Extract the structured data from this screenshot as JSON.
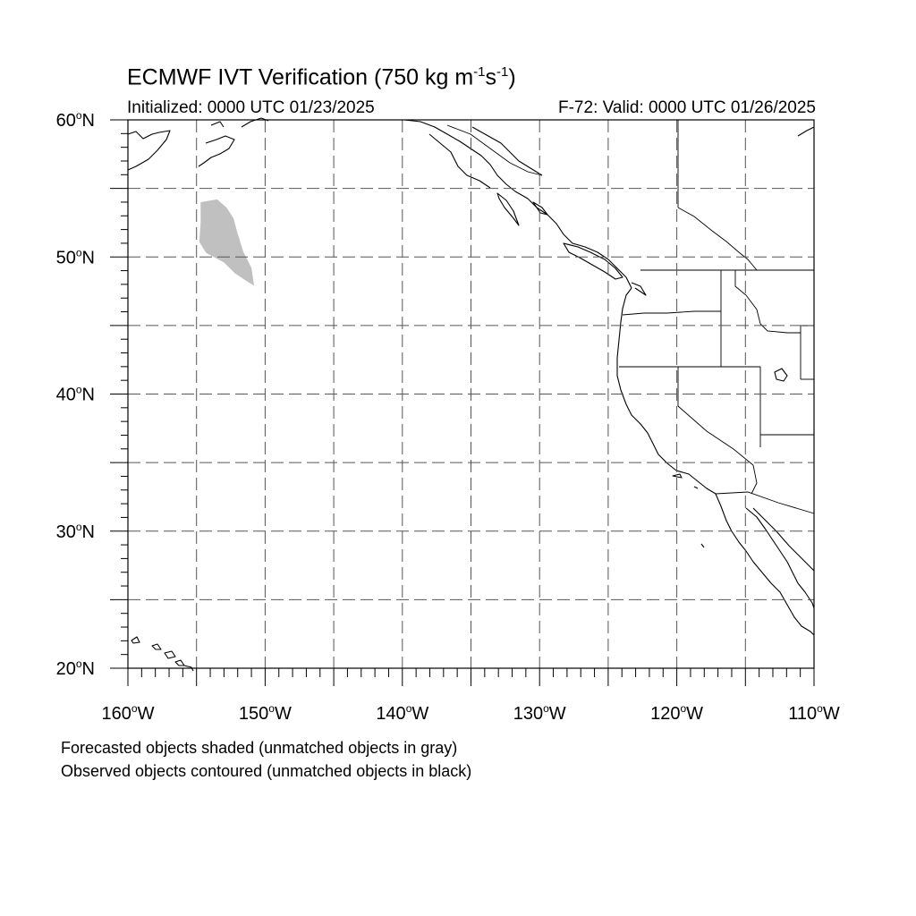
{
  "title": {
    "main": "ECMWF IVT Verification (750 kg m",
    "sup1": "-1",
    "mid": "s",
    "sup2": "-1",
    "end": ")"
  },
  "subtitle": {
    "initialized": "Initialized: 0000 UTC 01/23/2025",
    "valid": "F-72: Valid: 0000 UTC 01/26/2025"
  },
  "axes": {
    "lon_range": [
      -160,
      -110
    ],
    "lat_range": [
      20,
      60
    ],
    "lat_labels": [
      {
        "value": 60,
        "text": "60",
        "suffix": "N"
      },
      {
        "value": 50,
        "text": "50",
        "suffix": "N"
      },
      {
        "value": 40,
        "text": "40",
        "suffix": "N"
      },
      {
        "value": 30,
        "text": "30",
        "suffix": "N"
      },
      {
        "value": 20,
        "text": "20",
        "suffix": "N"
      }
    ],
    "lon_labels": [
      {
        "value": -160,
        "text": "160",
        "suffix": "W"
      },
      {
        "value": -150,
        "text": "150",
        "suffix": "W"
      },
      {
        "value": -140,
        "text": "140",
        "suffix": "W"
      },
      {
        "value": -130,
        "text": "130",
        "suffix": "W"
      },
      {
        "value": -120,
        "text": "120",
        "suffix": "W"
      },
      {
        "value": -110,
        "text": "110",
        "suffix": "W"
      }
    ],
    "gridlines_lon": [
      -155,
      -150,
      -145,
      -140,
      -135,
      -130,
      -125,
      -120,
      -115
    ],
    "gridlines_lat": [
      25,
      30,
      35,
      40,
      45,
      50,
      55
    ],
    "grid_style": "dashed"
  },
  "forecast_object": {
    "status": "unmatched",
    "color": "#c0c0c0",
    "outline": [
      [
        -154.7,
        54.0
      ],
      [
        -153.5,
        54.2
      ],
      [
        -152.8,
        53.6
      ],
      [
        -152.3,
        52.8
      ],
      [
        -152.0,
        51.7
      ],
      [
        -151.6,
        50.4
      ],
      [
        -151.0,
        49.2
      ],
      [
        -150.8,
        47.9
      ],
      [
        -151.3,
        48.2
      ],
      [
        -152.2,
        48.8
      ],
      [
        -153.0,
        49.6
      ],
      [
        -154.3,
        50.3
      ],
      [
        -154.8,
        51.1
      ],
      [
        -154.7,
        52.5
      ]
    ]
  },
  "colors": {
    "coast": "#000000",
    "grid": "#555555",
    "unmatched_forecast": "#c0c0c0"
  },
  "notes": {
    "line1": "Forecasted objects shaded (unmatched objects in gray)",
    "line2": "Observed objects contoured (unmatched objects in black)"
  }
}
